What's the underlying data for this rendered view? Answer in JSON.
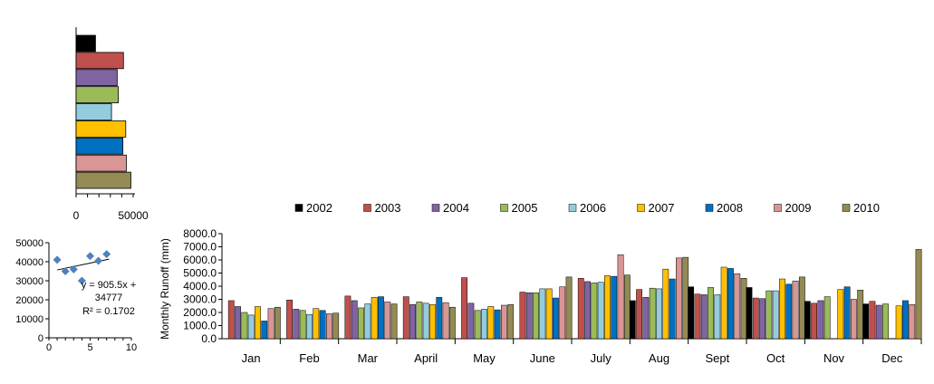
{
  "chart_data": [
    {
      "type": "bar",
      "orientation": "horizontal",
      "series_colors": [
        "#000000",
        "#C0504D",
        "#8064A2",
        "#9BBB59",
        "#93CDDD",
        "#FFC000",
        "#0070C0",
        "#D99694",
        "#948A54"
      ],
      "values": [
        17000,
        41500,
        36000,
        37000,
        31000,
        43500,
        41000,
        44000,
        48000
      ],
      "xlim": [
        0,
        50000
      ],
      "xticks": [
        "0",
        "50000"
      ]
    },
    {
      "type": "scatter",
      "x": [
        1,
        2,
        3,
        4,
        5,
        6,
        7
      ],
      "y": [
        41000,
        35000,
        36000,
        30000,
        43000,
        40500,
        44000
      ],
      "xlim": [
        0,
        10
      ],
      "ylim": [
        0,
        50000
      ],
      "xticks": [
        "0",
        "5",
        "10"
      ],
      "yticks": [
        "0",
        "10000",
        "20000",
        "30000",
        "40000",
        "50000"
      ],
      "point_color": "#4F81BD",
      "trendline": {
        "slope": 905.5,
        "intercept": 34777
      },
      "equation_lines": [
        "y = 905.5x +",
        "34777",
        "R² = 0.1702"
      ]
    },
    {
      "type": "bar",
      "ylabel": "Monthly  Runoff (mm)",
      "ylim": [
        0,
        8000
      ],
      "yticks": [
        "0.0",
        "1000.0",
        "2000.0",
        "3000.0",
        "4000.0",
        "5000.0",
        "6000.0",
        "7000.0",
        "8000.0"
      ],
      "categories": [
        "Jan",
        "Feb",
        "Mar",
        "April",
        "May",
        "June",
        "July",
        "Aug",
        "Sept",
        "Oct",
        "Nov",
        "Dec"
      ],
      "legend_position": "top",
      "series": [
        {
          "name": "2002",
          "color": "#000000",
          "values": [
            0,
            0,
            0,
            0,
            0,
            0,
            0,
            2900,
            3950,
            3900,
            2850,
            2650
          ]
        },
        {
          "name": "2003",
          "color": "#C0504D",
          "values": [
            2900,
            2950,
            3250,
            3200,
            4650,
            3550,
            4600,
            3750,
            3400,
            3100,
            2700,
            2850
          ]
        },
        {
          "name": "2004",
          "color": "#8064A2",
          "values": [
            2450,
            2250,
            2900,
            2600,
            2700,
            3500,
            4350,
            3150,
            3350,
            3050,
            2900,
            2550
          ]
        },
        {
          "name": "2005",
          "color": "#9BBB59",
          "values": [
            2000,
            2150,
            2350,
            2800,
            2150,
            3500,
            4250,
            3850,
            3900,
            3650,
            3200,
            2650
          ]
        },
        {
          "name": "2006",
          "color": "#93CDDD",
          "values": [
            1800,
            1850,
            2650,
            2700,
            2250,
            3800,
            4300,
            3800,
            3350,
            3650,
            0,
            0
          ]
        },
        {
          "name": "2007",
          "color": "#FFC000",
          "values": [
            2450,
            2300,
            3150,
            2600,
            2450,
            3800,
            4800,
            5300,
            5450,
            4550,
            3750,
            2500
          ]
        },
        {
          "name": "2008",
          "color": "#0070C0",
          "values": [
            1350,
            2150,
            3200,
            3150,
            2200,
            3100,
            4750,
            4550,
            5350,
            4150,
            3950,
            2900
          ]
        },
        {
          "name": "2009",
          "color": "#D99694",
          "values": [
            2300,
            1900,
            2800,
            2750,
            2550,
            3950,
            6400,
            6150,
            4950,
            4400,
            3000,
            2600
          ]
        },
        {
          "name": "2010",
          "color": "#948A54",
          "values": [
            2400,
            1950,
            2650,
            2400,
            2600,
            4700,
            4850,
            6200,
            4600,
            4700,
            3700,
            6800
          ]
        }
      ]
    }
  ]
}
